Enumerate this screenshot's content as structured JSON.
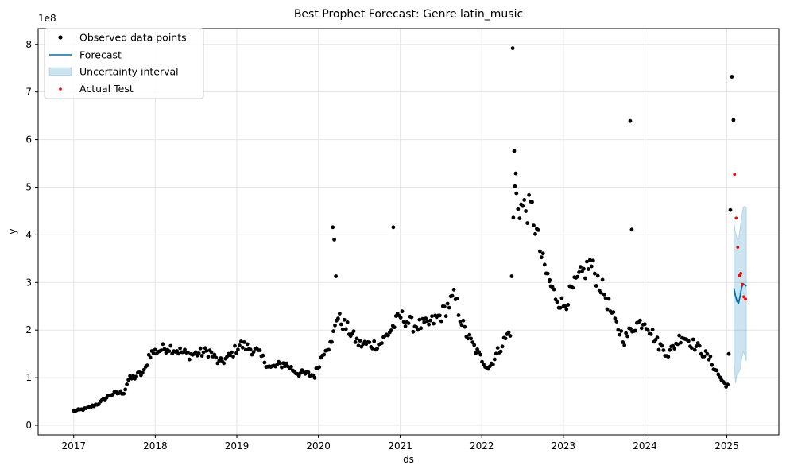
{
  "chart_data": {
    "type": "scatter",
    "title": "Best Prophet Forecast: Genre latin_music",
    "xlabel": "ds",
    "ylabel": "y",
    "y_multiplier_label": "1e8",
    "xlim": [
      "2016-07-26",
      "2025-08-22"
    ],
    "ylim": [
      -0.2,
      8.33
    ],
    "x_ticks": [
      "2017",
      "2018",
      "2019",
      "2020",
      "2021",
      "2022",
      "2023",
      "2024",
      "2025"
    ],
    "y_ticks": [
      "0",
      "1",
      "2",
      "3",
      "4",
      "5",
      "6",
      "7",
      "8"
    ],
    "grid": true,
    "legend_position": "upper left",
    "legend": [
      "Observed data points",
      "Forecast",
      "Uncertainty interval",
      "Actual Test"
    ],
    "colors": {
      "observed": "#000000",
      "forecast": "#0072B2",
      "uncertainty": "#0072B2",
      "actual_test": "#ff0000",
      "grid": "#e5e5e5"
    },
    "observed_anchors": [
      [
        "2017-01-01",
        0.3
      ],
      [
        "2017-03-01",
        0.35
      ],
      [
        "2017-05-01",
        0.48
      ],
      [
        "2017-06-15",
        0.65
      ],
      [
        "2017-08-15",
        0.7
      ],
      [
        "2017-09-01",
        0.95
      ],
      [
        "2017-11-15",
        1.12
      ],
      [
        "2017-12-05",
        1.5
      ],
      [
        "2018-03-01",
        1.65
      ],
      [
        "2018-06-01",
        1.48
      ],
      [
        "2018-09-01",
        1.55
      ],
      [
        "2018-10-15",
        1.3
      ],
      [
        "2018-12-01",
        1.45
      ],
      [
        "2019-01-15",
        1.7
      ],
      [
        "2019-04-01",
        1.55
      ],
      [
        "2019-06-01",
        1.2
      ],
      [
        "2019-08-01",
        1.3
      ],
      [
        "2019-10-01",
        1.1
      ],
      [
        "2019-12-15",
        1.05
      ],
      [
        "2020-02-01",
        1.65
      ],
      [
        "2020-03-01",
        1.7
      ],
      [
        "2020-03-20",
        2.3
      ],
      [
        "2020-05-15",
        2.0
      ],
      [
        "2020-07-01",
        1.7
      ],
      [
        "2020-10-01",
        1.7
      ],
      [
        "2020-11-20",
        2.0
      ],
      [
        "2021-01-01",
        2.3
      ],
      [
        "2021-03-01",
        2.1
      ],
      [
        "2021-05-01",
        2.1
      ],
      [
        "2021-07-01",
        2.3
      ],
      [
        "2021-09-01",
        2.7
      ],
      [
        "2021-10-15",
        2.0
      ],
      [
        "2021-12-15",
        1.5
      ],
      [
        "2022-02-01",
        1.2
      ],
      [
        "2022-04-01",
        1.7
      ],
      [
        "2022-05-10",
        2.0
      ],
      [
        "2022-05-25",
        5.0
      ],
      [
        "2022-06-15",
        4.6
      ],
      [
        "2022-08-15",
        4.5
      ],
      [
        "2022-10-01",
        3.4
      ],
      [
        "2022-11-15",
        2.8
      ],
      [
        "2023-01-01",
        2.5
      ],
      [
        "2023-03-01",
        3.0
      ],
      [
        "2023-05-01",
        3.4
      ],
      [
        "2023-07-01",
        2.8
      ],
      [
        "2023-08-15",
        2.2
      ],
      [
        "2023-10-01",
        1.8
      ],
      [
        "2023-11-15",
        2.1
      ],
      [
        "2024-01-01",
        2.2
      ],
      [
        "2024-03-01",
        1.7
      ],
      [
        "2024-04-15",
        1.5
      ],
      [
        "2024-06-15",
        1.9
      ],
      [
        "2024-09-01",
        1.6
      ],
      [
        "2024-10-15",
        1.4
      ],
      [
        "2024-12-15",
        0.9
      ],
      [
        "2025-01-05",
        0.85
      ]
    ],
    "observed_outliers": [
      [
        "2020-03-05",
        4.16
      ],
      [
        "2020-03-12",
        3.9
      ],
      [
        "2020-03-19",
        3.13
      ],
      [
        "2020-12-01",
        4.16
      ],
      [
        "2022-05-19",
        7.92
      ],
      [
        "2022-05-26",
        5.76
      ],
      [
        "2022-06-02",
        5.29
      ],
      [
        "2022-11-01",
        3.05
      ],
      [
        "2023-10-27",
        6.39
      ],
      [
        "2023-11-03",
        4.11
      ],
      [
        "2025-01-10",
        1.5
      ],
      [
        "2025-01-17",
        4.52
      ],
      [
        "2025-01-24",
        7.32
      ],
      [
        "2025-01-31",
        6.41
      ]
    ],
    "forecast": [
      [
        "2025-02-02",
        2.88
      ],
      [
        "2025-02-09",
        2.72
      ],
      [
        "2025-02-16",
        2.6
      ],
      [
        "2025-02-23",
        2.57
      ],
      [
        "2025-03-02",
        2.72
      ],
      [
        "2025-03-09",
        2.9
      ],
      [
        "2025-03-16",
        2.97
      ],
      [
        "2025-03-23",
        2.95
      ],
      [
        "2025-03-30",
        2.92
      ]
    ],
    "uncertainty_upper": [
      4.3,
      4.05,
      3.92,
      3.92,
      4.15,
      4.4,
      4.58,
      4.6,
      4.57
    ],
    "uncertainty_lower": [
      1.35,
      0.88,
      1.08,
      1.1,
      1.18,
      1.4,
      1.55,
      1.46,
      1.35
    ],
    "actual_test": [
      [
        "2025-02-05",
        5.27
      ],
      [
        "2025-02-12",
        4.35
      ],
      [
        "2025-02-19",
        3.74
      ],
      [
        "2025-02-26",
        3.14
      ],
      [
        "2025-03-05",
        3.19
      ],
      [
        "2025-03-12",
        2.96
      ],
      [
        "2025-03-19",
        2.7
      ],
      [
        "2025-03-26",
        2.65
      ]
    ]
  }
}
